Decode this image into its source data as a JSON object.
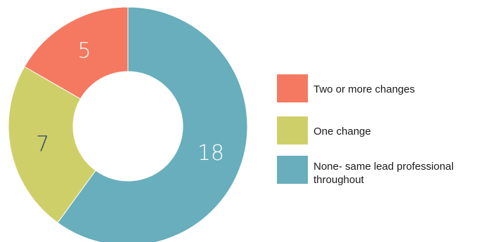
{
  "chart_data": {
    "type": "pie",
    "style": "donut",
    "categories": [
      "Two or more changes",
      "One change",
      "None- same lead professional throughout"
    ],
    "values": [
      5,
      7,
      18
    ],
    "colors": [
      "#f47960",
      "#cfcf6a",
      "#68aebc"
    ],
    "slice_labels": [
      "5",
      "7",
      "18"
    ],
    "label_colors": [
      "#ffffff",
      "#2a4c5c",
      "#ffffff"
    ],
    "legend": {
      "position": "right",
      "entries": [
        "Two or more changes",
        "One change",
        "None- same lead professional throughout"
      ]
    }
  }
}
